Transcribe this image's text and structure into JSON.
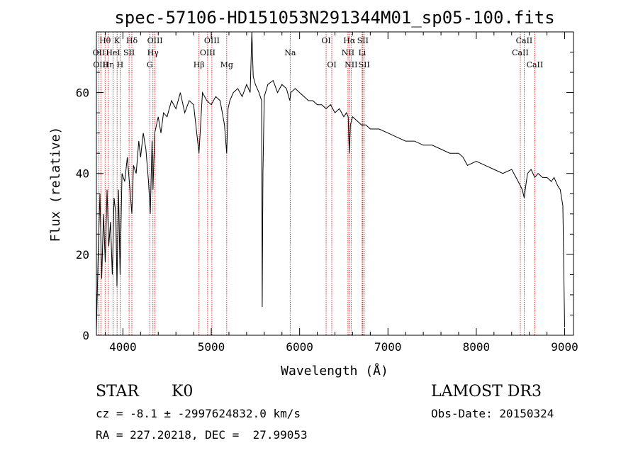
{
  "chart_data": {
    "type": "line",
    "title": "spec-57106-HD151053N291344M01_sp05-100.fits",
    "xlabel": "Wavelength (Å)",
    "ylabel": "Flux (relative)",
    "xlim": [
      3700,
      9100
    ],
    "ylim": [
      0,
      75
    ],
    "xticks": [
      4000,
      5000,
      6000,
      7000,
      8000,
      9000
    ],
    "yticks": [
      0,
      20,
      40,
      60
    ],
    "grid": false,
    "line_color": "#000000",
    "marker_color": "#cc0000",
    "series": [
      {
        "x": [
          3700,
          3720,
          3740,
          3760,
          3780,
          3800,
          3820,
          3840,
          3860,
          3880,
          3900,
          3920,
          3933,
          3950,
          3968,
          3990,
          4020,
          4050,
          4080,
          4101,
          4120,
          4150,
          4180,
          4200,
          4230,
          4260,
          4290,
          4310,
          4330,
          4340,
          4360,
          4380,
          4400,
          4430,
          4460,
          4500,
          4550,
          4600,
          4650,
          4700,
          4750,
          4800,
          4861,
          4900,
          4950,
          5000,
          5050,
          5100,
          5150,
          5175,
          5190,
          5210,
          5250,
          5300,
          5350,
          5400,
          5440,
          5460,
          5475,
          5500,
          5540,
          5570,
          5577,
          5585,
          5600,
          5640,
          5700,
          5750,
          5800,
          5850,
          5890,
          5900,
          5950,
          6000,
          6050,
          6100,
          6150,
          6200,
          6250,
          6300,
          6350,
          6400,
          6450,
          6500,
          6530,
          6550,
          6563,
          6575,
          6600,
          6650,
          6700,
          6750,
          6800,
          6900,
          7000,
          7100,
          7200,
          7300,
          7400,
          7500,
          7600,
          7700,
          7800,
          7850,
          7900,
          8000,
          8100,
          8200,
          8300,
          8400,
          8450,
          8498,
          8520,
          8542,
          8560,
          8580,
          8620,
          8662,
          8700,
          8750,
          8800,
          8850,
          8880,
          8900,
          8920,
          8950,
          8980,
          9000
        ],
        "values": [
          1,
          20,
          35,
          14,
          30,
          18,
          36,
          22,
          28,
          15,
          34,
          30,
          12,
          36,
          15,
          40,
          38,
          44,
          36,
          30,
          42,
          40,
          48,
          44,
          50,
          46,
          38,
          30,
          48,
          36,
          50,
          52,
          54,
          50,
          55,
          54,
          58,
          56,
          60,
          55,
          58,
          57,
          45,
          60,
          58,
          57,
          59,
          58,
          52,
          45,
          56,
          58,
          60,
          61,
          59,
          62,
          60,
          75,
          64,
          62,
          60,
          58,
          7,
          40,
          59,
          62,
          63,
          60,
          62,
          61,
          58,
          60,
          61,
          60,
          59,
          58,
          58,
          57,
          57,
          56,
          57,
          55,
          56,
          54,
          55,
          54,
          45,
          52,
          54,
          53,
          52,
          52,
          51,
          51,
          50,
          49,
          48,
          48,
          47,
          47,
          46,
          45,
          45,
          44,
          42,
          43,
          42,
          41,
          40,
          41,
          39,
          37,
          36,
          34,
          37,
          40,
          41,
          39,
          40,
          39,
          39,
          38,
          39,
          38,
          37,
          36,
          32,
          2
        ]
      }
    ],
    "line_markers": [
      {
        "label": "Hθ",
        "x": 3798,
        "row": 0
      },
      {
        "label": "OII",
        "x": 3727,
        "row": 1
      },
      {
        "label": "OIII",
        "x": 3750,
        "row": 2
      },
      {
        "label": "Hη",
        "x": 3835,
        "row": 2
      },
      {
        "label": "HeI",
        "x": 3889,
        "row": 1
      },
      {
        "label": "K",
        "x": 3934,
        "row": 0
      },
      {
        "label": "H",
        "x": 3968,
        "row": 2
      },
      {
        "label": "SII",
        "x": 4070,
        "row": 1
      },
      {
        "label": "Hδ",
        "x": 4101,
        "row": 0
      },
      {
        "label": "G",
        "x": 4304,
        "row": 2
      },
      {
        "label": "Hγ",
        "x": 4340,
        "row": 1
      },
      {
        "label": "OIII",
        "x": 4363,
        "row": 0
      },
      {
        "label": "Hβ",
        "x": 4861,
        "row": 2
      },
      {
        "label": "OIII",
        "x": 4959,
        "row": 1
      },
      {
        "label": "OIII",
        "x": 5007,
        "row": 0
      },
      {
        "label": "Mg",
        "x": 5175,
        "row": 2
      },
      {
        "label": "Na",
        "x": 5893,
        "row": 1
      },
      {
        "label": "OI",
        "x": 6300,
        "row": 0
      },
      {
        "label": "OI",
        "x": 6364,
        "row": 2
      },
      {
        "label": "NII",
        "x": 6548,
        "row": 1
      },
      {
        "label": "Hα",
        "x": 6563,
        "row": 0
      },
      {
        "label": "NII",
        "x": 6583,
        "row": 2
      },
      {
        "label": "Li",
        "x": 6708,
        "row": 1
      },
      {
        "label": "SII",
        "x": 6716,
        "row": 0
      },
      {
        "label": "SII",
        "x": 6731,
        "row": 2
      },
      {
        "label": "CaII",
        "x": 8498,
        "row": 1
      },
      {
        "label": "CaII",
        "x": 8542,
        "row": 0
      },
      {
        "label": "CaII",
        "x": 8662,
        "row": 2
      }
    ]
  },
  "info": {
    "class": "STAR",
    "subclass": "K0",
    "survey": "LAMOST DR3",
    "cz": "cz = -8.1 ± -2997624832.0 km/s",
    "obs_date": "Obs-Date: 20150324",
    "coords": "RA = 227.20218, DEC =  27.99053"
  }
}
